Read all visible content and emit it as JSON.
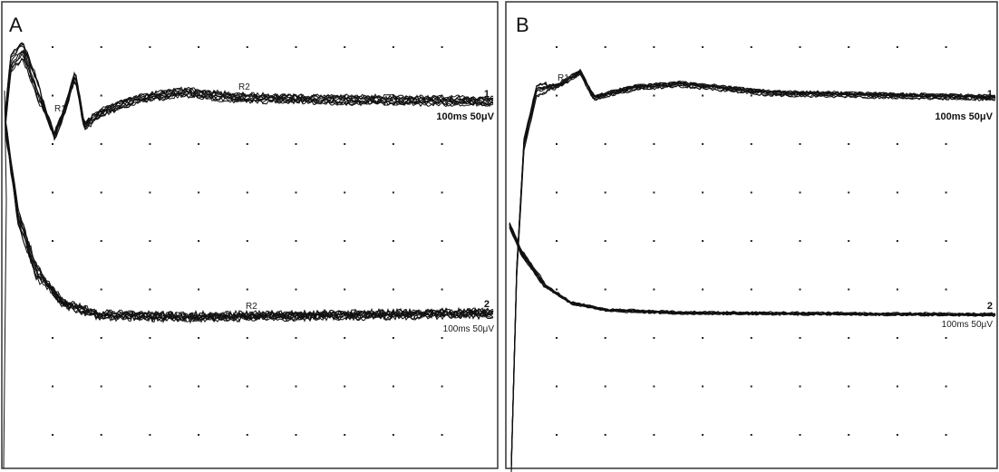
{
  "panels": [
    {
      "label": "A",
      "channels": [
        {
          "number": "1",
          "markers": [
            "R1",
            "R2"
          ],
          "scale": "100ms 50μV"
        },
        {
          "number": "2",
          "markers": [
            "R2"
          ],
          "scale": "100ms 50μV"
        }
      ]
    },
    {
      "label": "B",
      "channels": [
        {
          "number": "1",
          "markers": [
            "R1"
          ],
          "scale": "100ms 50μV"
        },
        {
          "number": "2",
          "scale": "100ms 50μV"
        }
      ]
    }
  ]
}
